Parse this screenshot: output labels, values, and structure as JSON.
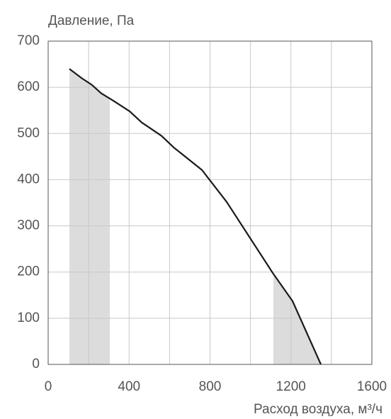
{
  "chart_data": {
    "type": "line",
    "y_label": "Давление, Па",
    "x_label": "Расход воздуха, м³/ч",
    "x": [
      105,
      165,
      217,
      262,
      322,
      403,
      462,
      560,
      620,
      760,
      882,
      1110,
      1208,
      1348
    ],
    "series": [
      {
        "color": "#1a1a1a",
        "values": [
          640,
          620,
          605,
          587,
          571,
          548,
          524,
          495,
          470,
          421,
          352,
          198,
          137,
          0
        ]
      }
    ],
    "shaded_regions": [
      [
        105,
        305
      ],
      [
        1113,
        1348
      ]
    ],
    "shade_color": "#dcdcdc",
    "xlim": [
      0,
      1600
    ],
    "xticks": [
      0,
      400,
      800,
      1200,
      1600
    ],
    "x_minor_grid": [
      200,
      600,
      1000,
      1400
    ],
    "ylim": [
      0,
      700
    ],
    "yticks": [
      0,
      100,
      200,
      300,
      400,
      500,
      600,
      700
    ],
    "grid": true
  }
}
